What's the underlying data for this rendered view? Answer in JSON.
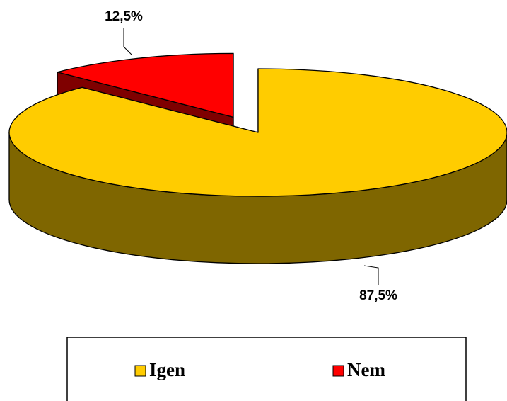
{
  "chart_data": {
    "type": "pie",
    "categories": [
      "Igen",
      "Nem"
    ],
    "values": [
      87.5,
      12.5
    ],
    "value_labels": [
      "87,5%",
      "12,5%"
    ],
    "colors": [
      "#ffcc00",
      "#ff0000"
    ],
    "legend": "bottom"
  }
}
